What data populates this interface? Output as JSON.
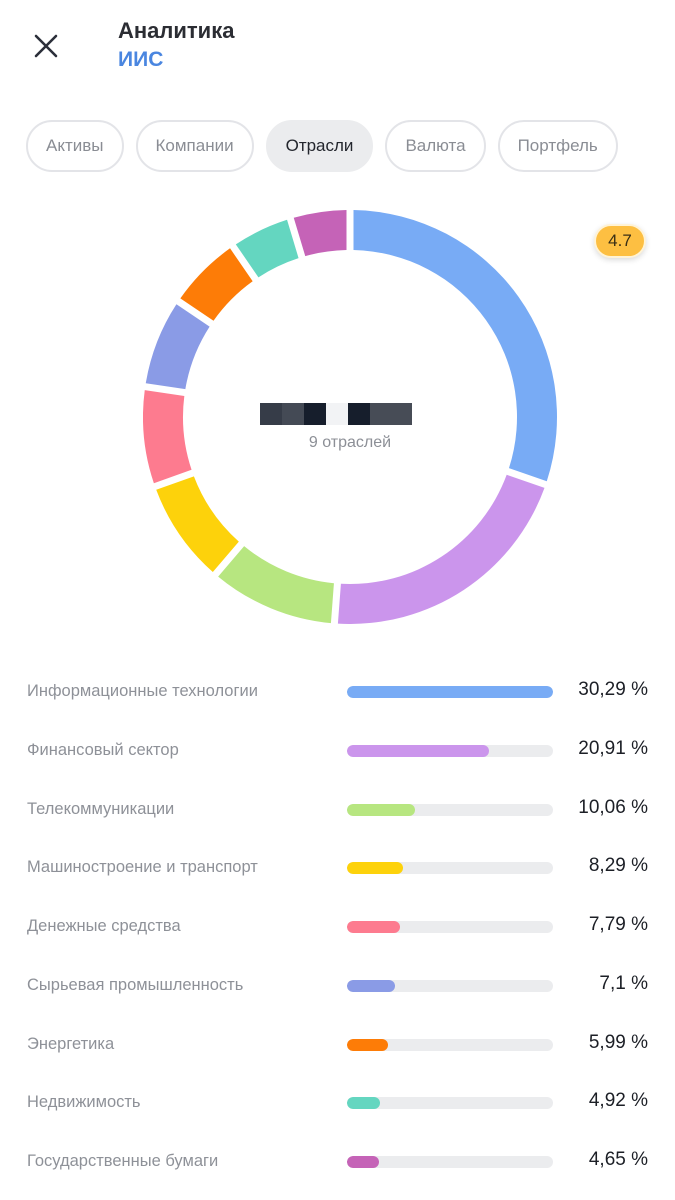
{
  "header": {
    "close_icon": "close-icon",
    "title": "Аналитика",
    "subtitle": "ИИС"
  },
  "tabs": [
    {
      "label": "Активы",
      "active": false
    },
    {
      "label": "Компании",
      "active": false
    },
    {
      "label": "Отрасли",
      "active": true
    },
    {
      "label": "Валюта",
      "active": false
    },
    {
      "label": "Портфель",
      "active": false
    }
  ],
  "badge": {
    "value": "4.7",
    "color": "#fdbf42"
  },
  "donut": {
    "center_value": "[redacted]",
    "center_label": "9 отраслей"
  },
  "sectors": [
    {
      "name": "Информационные технологии",
      "percent_label": "30,29 %",
      "color": "#78abf5"
    },
    {
      "name": "Финансовый сектор",
      "percent_label": "20,91 %",
      "color": "#cb95ec"
    },
    {
      "name": "Телекоммуникации",
      "percent_label": "10,06 %",
      "color": "#b7e680"
    },
    {
      "name": "Машиностроение и транспорт",
      "percent_label": "8,29 %",
      "color": "#fdd20b"
    },
    {
      "name": "Денежные средства",
      "percent_label": "7,79 %",
      "color": "#fd7b8f"
    },
    {
      "name": "Сырьевая промышленность",
      "percent_label": "7,1 %",
      "color": "#8a9be6"
    },
    {
      "name": "Энергетика",
      "percent_label": "5,99 %",
      "color": "#fd7c07"
    },
    {
      "name": "Недвижимость",
      "percent_label": "4,92 %",
      "color": "#64d6c0"
    },
    {
      "name": "Государственные бумаги",
      "percent_label": "4,65 %",
      "color": "#c563b7"
    }
  ],
  "chart_data": {
    "type": "pie",
    "subtype": "donut",
    "title": "Отрасли",
    "center_label": "9 отраслей",
    "categories": [
      "Информационные технологии",
      "Финансовый сектор",
      "Телекоммуникации",
      "Машиностроение и транспорт",
      "Денежные средства",
      "Сырьевая промышленность",
      "Энергетика",
      "Недвижимость",
      "Государственные бумаги"
    ],
    "values": [
      30.29,
      20.91,
      10.06,
      8.29,
      7.79,
      7.1,
      5.99,
      4.92,
      4.65
    ],
    "colors": [
      "#78abf5",
      "#cb95ec",
      "#b7e680",
      "#fdd20b",
      "#fd7b8f",
      "#8a9be6",
      "#fd7c07",
      "#64d6c0",
      "#c563b7"
    ],
    "unit": "%",
    "legend_position": "bottom"
  }
}
